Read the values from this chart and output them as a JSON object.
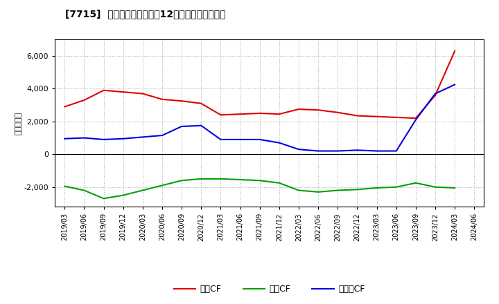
{
  "title": "[7715]  キャッシュフローの12か月移動合計の推移",
  "ylabel": "（百万円）",
  "background_color": "#ffffff",
  "plot_bg_color": "#ffffff",
  "grid_color": "#aaaaaa",
  "x_labels": [
    "2019/03",
    "2019/06",
    "2019/09",
    "2019/12",
    "2020/03",
    "2020/06",
    "2020/09",
    "2020/12",
    "2021/03",
    "2021/06",
    "2021/09",
    "2021/12",
    "2022/03",
    "2022/06",
    "2022/09",
    "2022/12",
    "2023/03",
    "2023/06",
    "2023/09",
    "2023/12",
    "2024/03",
    "2024/06"
  ],
  "operating_cf": [
    2900,
    3300,
    3900,
    3800,
    3700,
    3350,
    3250,
    3100,
    2400,
    2450,
    2500,
    2450,
    2750,
    2700,
    2550,
    2350,
    2300,
    2250,
    2200,
    3600,
    6300,
    null
  ],
  "investing_cf": [
    -1950,
    -2200,
    -2700,
    -2500,
    -2200,
    -1900,
    -1600,
    -1500,
    -1500,
    -1550,
    -1600,
    -1750,
    -2200,
    -2300,
    -2200,
    -2150,
    -2050,
    -2000,
    -1750,
    -2000,
    -2050,
    null
  ],
  "free_cf": [
    950,
    1000,
    900,
    950,
    1050,
    1150,
    1700,
    1750,
    900,
    900,
    900,
    700,
    300,
    200,
    200,
    250,
    200,
    200,
    2100,
    3700,
    4250,
    null
  ],
  "ylim": [
    -3200,
    7000
  ],
  "yticks": [
    -2000,
    0,
    2000,
    4000,
    6000
  ],
  "line_colors": {
    "operating": "#e00000",
    "investing": "#00a000",
    "free": "#0000e0"
  },
  "legend_labels": [
    "営業CF",
    "投資CF",
    "フリーCF"
  ]
}
